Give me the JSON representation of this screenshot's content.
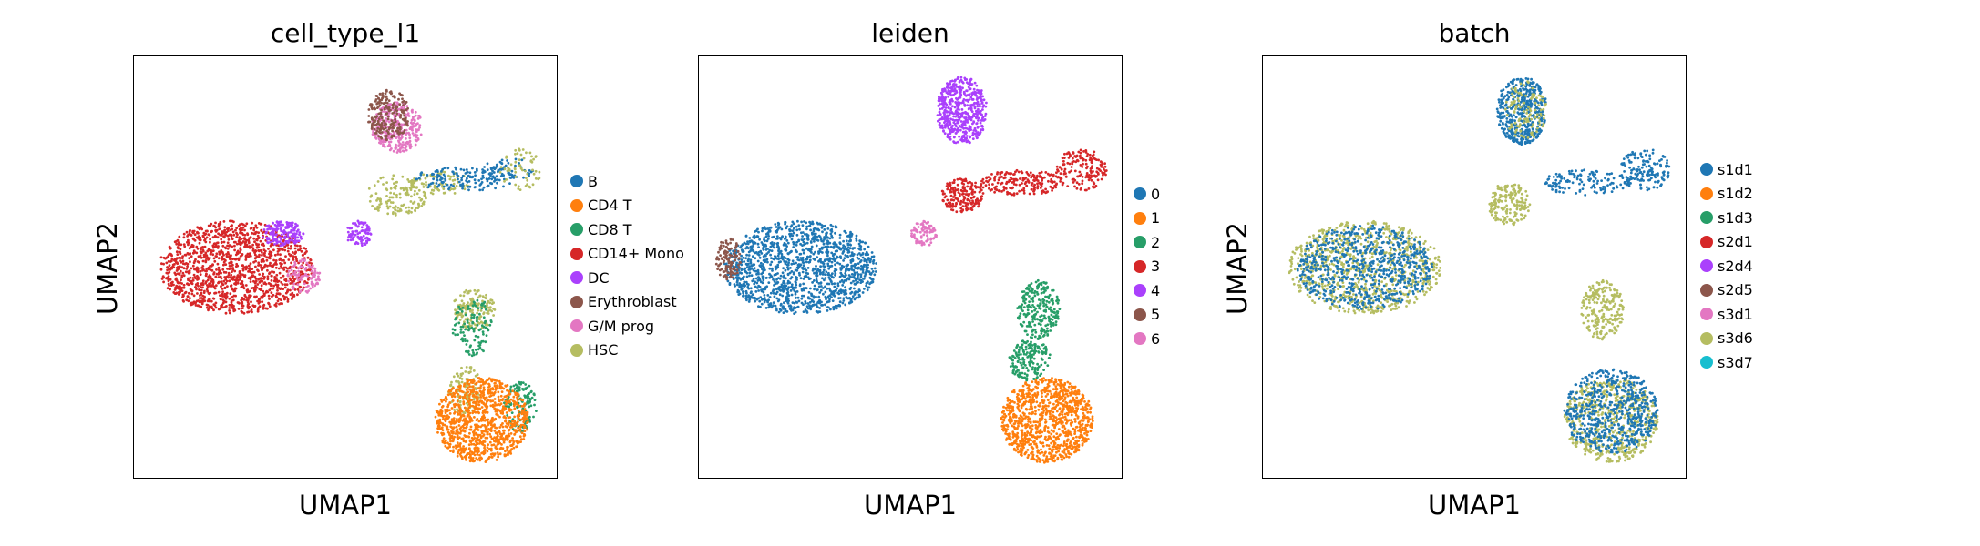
{
  "chart_data": [
    {
      "type": "scatter",
      "title": "cell_type_l1",
      "xlabel": "UMAP1",
      "ylabel": "UMAP2",
      "grid": false,
      "legend": "right",
      "legend_entries": [
        {
          "label": "B",
          "color": "#1f77b4"
        },
        {
          "label": "CD4 T",
          "color": "#ff7f0e"
        },
        {
          "label": "CD8 T",
          "color": "#279e68"
        },
        {
          "label": "CD14+ Mono",
          "color": "#d62728"
        },
        {
          "label": "DC",
          "color": "#aa40fc"
        },
        {
          "label": "Erythroblast",
          "color": "#8c564b"
        },
        {
          "label": "G/M prog",
          "color": "#e377c2"
        },
        {
          "label": "HSC",
          "color": "#b5bd61"
        }
      ],
      "clusters": [
        {
          "label": "CD14+ Mono",
          "x": 0.24,
          "y": 0.5,
          "rx": 0.18,
          "ry": 0.11,
          "n": 1400
        },
        {
          "label": "DC",
          "x": 0.35,
          "y": 0.42,
          "rx": 0.05,
          "ry": 0.03,
          "n": 160
        },
        {
          "label": "DC",
          "x": 0.53,
          "y": 0.42,
          "rx": 0.03,
          "ry": 0.03,
          "n": 90
        },
        {
          "label": "G/M prog",
          "x": 0.4,
          "y": 0.52,
          "rx": 0.04,
          "ry": 0.04,
          "n": 100
        },
        {
          "label": "G/M prog",
          "x": 0.62,
          "y": 0.17,
          "rx": 0.06,
          "ry": 0.06,
          "n": 300
        },
        {
          "label": "Erythroblast",
          "x": 0.6,
          "y": 0.14,
          "rx": 0.05,
          "ry": 0.06,
          "n": 220
        },
        {
          "label": "HSC",
          "x": 0.62,
          "y": 0.33,
          "rx": 0.07,
          "ry": 0.05,
          "n": 140
        },
        {
          "label": "HSC",
          "x": 0.72,
          "y": 0.3,
          "rx": 0.07,
          "ry": 0.03,
          "n": 80
        },
        {
          "label": "B",
          "x": 0.78,
          "y": 0.29,
          "rx": 0.12,
          "ry": 0.03,
          "n": 140
        },
        {
          "label": "B",
          "x": 0.88,
          "y": 0.27,
          "rx": 0.06,
          "ry": 0.03,
          "n": 60
        },
        {
          "label": "HSC",
          "x": 0.91,
          "y": 0.27,
          "rx": 0.05,
          "ry": 0.05,
          "n": 60
        },
        {
          "label": "HSC",
          "x": 0.8,
          "y": 0.6,
          "rx": 0.05,
          "ry": 0.05,
          "n": 160
        },
        {
          "label": "HSC",
          "x": 0.78,
          "y": 0.79,
          "rx": 0.04,
          "ry": 0.06,
          "n": 120
        },
        {
          "label": "CD8 T",
          "x": 0.8,
          "y": 0.64,
          "rx": 0.05,
          "ry": 0.07,
          "n": 120
        },
        {
          "label": "CD8 T",
          "x": 0.91,
          "y": 0.83,
          "rx": 0.04,
          "ry": 0.06,
          "n": 140
        },
        {
          "label": "CD4 T",
          "x": 0.82,
          "y": 0.86,
          "rx": 0.11,
          "ry": 0.1,
          "n": 1000
        }
      ]
    },
    {
      "type": "scatter",
      "title": "leiden",
      "xlabel": "UMAP1",
      "ylabel": "",
      "grid": false,
      "legend": "right",
      "legend_entries": [
        {
          "label": "0",
          "color": "#1f77b4"
        },
        {
          "label": "1",
          "color": "#ff7f0e"
        },
        {
          "label": "2",
          "color": "#279e68"
        },
        {
          "label": "3",
          "color": "#d62728"
        },
        {
          "label": "4",
          "color": "#aa40fc"
        },
        {
          "label": "5",
          "color": "#8c564b"
        },
        {
          "label": "6",
          "color": "#e377c2"
        }
      ],
      "clusters": [
        {
          "label": "0",
          "x": 0.24,
          "y": 0.5,
          "rx": 0.18,
          "ry": 0.11,
          "n": 1400
        },
        {
          "label": "5",
          "x": 0.07,
          "y": 0.48,
          "rx": 0.03,
          "ry": 0.05,
          "n": 120
        },
        {
          "label": "4",
          "x": 0.62,
          "y": 0.13,
          "rx": 0.06,
          "ry": 0.08,
          "n": 520
        },
        {
          "label": "3",
          "x": 0.62,
          "y": 0.33,
          "rx": 0.05,
          "ry": 0.04,
          "n": 180
        },
        {
          "label": "3",
          "x": 0.76,
          "y": 0.3,
          "rx": 0.1,
          "ry": 0.03,
          "n": 200
        },
        {
          "label": "3",
          "x": 0.9,
          "y": 0.27,
          "rx": 0.06,
          "ry": 0.05,
          "n": 160
        },
        {
          "label": "6",
          "x": 0.53,
          "y": 0.42,
          "rx": 0.03,
          "ry": 0.03,
          "n": 90
        },
        {
          "label": "2",
          "x": 0.8,
          "y": 0.6,
          "rx": 0.05,
          "ry": 0.07,
          "n": 260
        },
        {
          "label": "2",
          "x": 0.78,
          "y": 0.72,
          "rx": 0.05,
          "ry": 0.05,
          "n": 180
        },
        {
          "label": "1",
          "x": 0.82,
          "y": 0.86,
          "rx": 0.11,
          "ry": 0.1,
          "n": 1000
        }
      ]
    },
    {
      "type": "scatter",
      "title": "batch",
      "xlabel": "UMAP1",
      "ylabel": "UMAP2",
      "grid": false,
      "legend": "right",
      "legend_entries": [
        {
          "label": "s1d1",
          "color": "#1f77b4"
        },
        {
          "label": "s1d2",
          "color": "#ff7f0e"
        },
        {
          "label": "s1d3",
          "color": "#279e68"
        },
        {
          "label": "s2d1",
          "color": "#d62728"
        },
        {
          "label": "s2d4",
          "color": "#aa40fc"
        },
        {
          "label": "s2d5",
          "color": "#8c564b"
        },
        {
          "label": "s3d1",
          "color": "#e377c2"
        },
        {
          "label": "s3d6",
          "color": "#b5bd61"
        },
        {
          "label": "s3d7",
          "color": "#17becf"
        }
      ],
      "clusters": [
        {
          "label": "s3d6",
          "x": 0.24,
          "y": 0.5,
          "rx": 0.18,
          "ry": 0.11,
          "n": 900
        },
        {
          "label": "s1d1",
          "x": 0.24,
          "y": 0.5,
          "rx": 0.16,
          "ry": 0.1,
          "n": 700
        },
        {
          "label": "s1d1",
          "x": 0.61,
          "y": 0.13,
          "rx": 0.06,
          "ry": 0.08,
          "n": 450
        },
        {
          "label": "s3d6",
          "x": 0.62,
          "y": 0.13,
          "rx": 0.05,
          "ry": 0.07,
          "n": 120
        },
        {
          "label": "s3d6",
          "x": 0.58,
          "y": 0.35,
          "rx": 0.05,
          "ry": 0.05,
          "n": 180
        },
        {
          "label": "s1d1",
          "x": 0.76,
          "y": 0.3,
          "rx": 0.1,
          "ry": 0.03,
          "n": 130
        },
        {
          "label": "s1d1",
          "x": 0.9,
          "y": 0.27,
          "rx": 0.06,
          "ry": 0.05,
          "n": 160
        },
        {
          "label": "s3d6",
          "x": 0.8,
          "y": 0.6,
          "rx": 0.05,
          "ry": 0.07,
          "n": 220
        },
        {
          "label": "s3d6",
          "x": 0.82,
          "y": 0.86,
          "rx": 0.11,
          "ry": 0.1,
          "n": 600
        },
        {
          "label": "s1d1",
          "x": 0.82,
          "y": 0.84,
          "rx": 0.11,
          "ry": 0.1,
          "n": 600
        }
      ]
    }
  ]
}
